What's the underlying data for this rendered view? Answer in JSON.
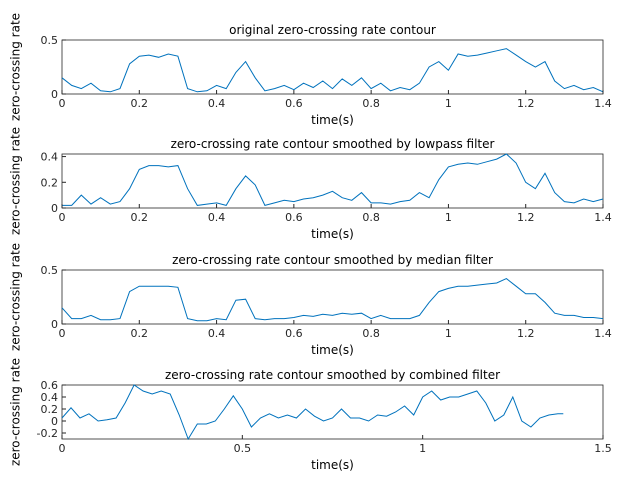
{
  "chart_data": [
    {
      "type": "line",
      "title": "original zero-crossing rate contour",
      "x_label": "time(s)",
      "y_label": "zero-crossing rate",
      "xlim": [
        0,
        1.4
      ],
      "xticks": [
        0,
        0.2,
        0.4,
        0.6,
        0.8,
        1,
        1.2,
        1.4
      ],
      "ylim": [
        0,
        0.5
      ],
      "yticks": [
        0,
        0.5
      ],
      "x": [
        0,
        0.025,
        0.05,
        0.075,
        0.1,
        0.125,
        0.15,
        0.175,
        0.2,
        0.225,
        0.25,
        0.275,
        0.3,
        0.325,
        0.35,
        0.375,
        0.4,
        0.425,
        0.45,
        0.475,
        0.5,
        0.525,
        0.55,
        0.575,
        0.6,
        0.625,
        0.65,
        0.675,
        0.7,
        0.725,
        0.75,
        0.775,
        0.8,
        0.825,
        0.85,
        0.875,
        0.9,
        0.925,
        0.95,
        0.975,
        1,
        1.025,
        1.05,
        1.075,
        1.1,
        1.125,
        1.15,
        1.175,
        1.2,
        1.225,
        1.25,
        1.275,
        1.3,
        1.325,
        1.35,
        1.375,
        1.4
      ],
      "series": [
        {
          "color": "#0072bd",
          "values": [
            0.15,
            0.08,
            0.05,
            0.1,
            0.03,
            0.02,
            0.05,
            0.28,
            0.35,
            0.36,
            0.34,
            0.37,
            0.35,
            0.05,
            0.02,
            0.03,
            0.08,
            0.05,
            0.2,
            0.3,
            0.15,
            0.03,
            0.05,
            0.08,
            0.04,
            0.1,
            0.06,
            0.12,
            0.05,
            0.14,
            0.08,
            0.15,
            0.05,
            0.1,
            0.03,
            0.06,
            0.04,
            0.1,
            0.25,
            0.3,
            0.22,
            0.37,
            0.35,
            0.36,
            0.38,
            0.4,
            0.42,
            0.36,
            0.3,
            0.25,
            0.3,
            0.12,
            0.05,
            0.08,
            0.04,
            0.06,
            0.02
          ]
        }
      ]
    },
    {
      "type": "line",
      "title": "zero-crossing rate contour smoothed by lowpass filter",
      "x_label": "time(s)",
      "y_label": "zero-crossing rate",
      "xlim": [
        0,
        1.4
      ],
      "xticks": [
        0,
        0.2,
        0.4,
        0.6,
        0.8,
        1,
        1.2,
        1.4
      ],
      "ylim": [
        0,
        0.42
      ],
      "yticks": [
        0,
        0.2,
        0.4
      ],
      "x": [
        0,
        0.025,
        0.05,
        0.075,
        0.1,
        0.125,
        0.15,
        0.175,
        0.2,
        0.225,
        0.25,
        0.275,
        0.3,
        0.325,
        0.35,
        0.375,
        0.4,
        0.425,
        0.45,
        0.475,
        0.5,
        0.525,
        0.55,
        0.575,
        0.6,
        0.625,
        0.65,
        0.675,
        0.7,
        0.725,
        0.75,
        0.775,
        0.8,
        0.825,
        0.85,
        0.875,
        0.9,
        0.925,
        0.95,
        0.975,
        1,
        1.025,
        1.05,
        1.075,
        1.1,
        1.125,
        1.15,
        1.175,
        1.2,
        1.225,
        1.25,
        1.275,
        1.3,
        1.325,
        1.35,
        1.375,
        1.4
      ],
      "series": [
        {
          "color": "#0072bd",
          "values": [
            0.02,
            0.02,
            0.1,
            0.03,
            0.08,
            0.03,
            0.05,
            0.15,
            0.3,
            0.33,
            0.33,
            0.32,
            0.33,
            0.15,
            0.02,
            0.03,
            0.04,
            0.02,
            0.15,
            0.25,
            0.18,
            0.02,
            0.04,
            0.06,
            0.05,
            0.07,
            0.08,
            0.1,
            0.13,
            0.08,
            0.06,
            0.12,
            0.04,
            0.04,
            0.03,
            0.05,
            0.06,
            0.12,
            0.08,
            0.22,
            0.32,
            0.34,
            0.35,
            0.34,
            0.36,
            0.38,
            0.42,
            0.35,
            0.2,
            0.15,
            0.27,
            0.12,
            0.05,
            0.04,
            0.07,
            0.05,
            0.07
          ]
        }
      ]
    },
    {
      "type": "line",
      "title": "zero-crossing rate contour smoothed by median filter",
      "x_label": "time(s)",
      "y_label": "zero-crossing rate",
      "xlim": [
        0,
        1.4
      ],
      "xticks": [
        0,
        0.2,
        0.4,
        0.6,
        0.8,
        1,
        1.2,
        1.4
      ],
      "ylim": [
        0,
        0.5
      ],
      "yticks": [
        0,
        0.5
      ],
      "x": [
        0,
        0.025,
        0.05,
        0.075,
        0.1,
        0.125,
        0.15,
        0.175,
        0.2,
        0.225,
        0.25,
        0.275,
        0.3,
        0.325,
        0.35,
        0.375,
        0.4,
        0.425,
        0.45,
        0.475,
        0.5,
        0.525,
        0.55,
        0.575,
        0.6,
        0.625,
        0.65,
        0.675,
        0.7,
        0.725,
        0.75,
        0.775,
        0.8,
        0.825,
        0.85,
        0.875,
        0.9,
        0.925,
        0.95,
        0.975,
        1,
        1.025,
        1.05,
        1.075,
        1.1,
        1.125,
        1.15,
        1.175,
        1.2,
        1.225,
        1.25,
        1.275,
        1.3,
        1.325,
        1.35,
        1.375,
        1.4
      ],
      "series": [
        {
          "color": "#0072bd",
          "values": [
            0.15,
            0.05,
            0.05,
            0.08,
            0.04,
            0.04,
            0.05,
            0.3,
            0.35,
            0.35,
            0.35,
            0.35,
            0.34,
            0.05,
            0.03,
            0.03,
            0.05,
            0.04,
            0.22,
            0.23,
            0.05,
            0.04,
            0.05,
            0.05,
            0.06,
            0.08,
            0.07,
            0.09,
            0.08,
            0.1,
            0.09,
            0.1,
            0.05,
            0.08,
            0.05,
            0.05,
            0.05,
            0.08,
            0.2,
            0.3,
            0.33,
            0.35,
            0.35,
            0.36,
            0.37,
            0.38,
            0.42,
            0.35,
            0.28,
            0.28,
            0.2,
            0.1,
            0.08,
            0.08,
            0.06,
            0.06,
            0.05
          ]
        }
      ]
    },
    {
      "type": "line",
      "title": "zero-crossing rate contour smoothed by combined filter",
      "x_label": "time(s)",
      "y_label": "zero-crossing rate",
      "xlim": [
        0,
        1.5
      ],
      "xticks": [
        0,
        0.5,
        1,
        1.5
      ],
      "ylim": [
        -0.3,
        0.6
      ],
      "yticks": [
        -0.2,
        0,
        0.2,
        0.4,
        0.6
      ],
      "x": [
        0,
        0.025,
        0.05,
        0.075,
        0.1,
        0.125,
        0.15,
        0.175,
        0.2,
        0.225,
        0.25,
        0.275,
        0.3,
        0.325,
        0.35,
        0.375,
        0.4,
        0.425,
        0.45,
        0.475,
        0.5,
        0.525,
        0.55,
        0.575,
        0.6,
        0.625,
        0.65,
        0.675,
        0.7,
        0.725,
        0.75,
        0.775,
        0.8,
        0.825,
        0.85,
        0.875,
        0.9,
        0.925,
        0.95,
        0.975,
        1,
        1.025,
        1.05,
        1.075,
        1.1,
        1.125,
        1.15,
        1.175,
        1.2,
        1.225,
        1.25,
        1.275,
        1.3,
        1.325,
        1.35,
        1.375,
        1.39
      ],
      "series": [
        {
          "color": "#0072bd",
          "values": [
            0.05,
            0.22,
            0.05,
            0.12,
            0.0,
            0.02,
            0.05,
            0.3,
            0.6,
            0.5,
            0.45,
            0.5,
            0.45,
            0.1,
            -0.3,
            -0.05,
            -0.05,
            0.0,
            0.2,
            0.42,
            0.2,
            -0.1,
            0.05,
            0.12,
            0.05,
            0.1,
            0.05,
            0.2,
            0.08,
            0.0,
            0.05,
            0.2,
            0.05,
            0.05,
            0.0,
            0.1,
            0.08,
            0.15,
            0.25,
            0.1,
            0.4,
            0.5,
            0.35,
            0.4,
            0.4,
            0.45,
            0.5,
            0.3,
            0.0,
            0.1,
            0.4,
            0.0,
            -0.1,
            0.05,
            0.1,
            0.12,
            0.12
          ]
        }
      ]
    }
  ]
}
